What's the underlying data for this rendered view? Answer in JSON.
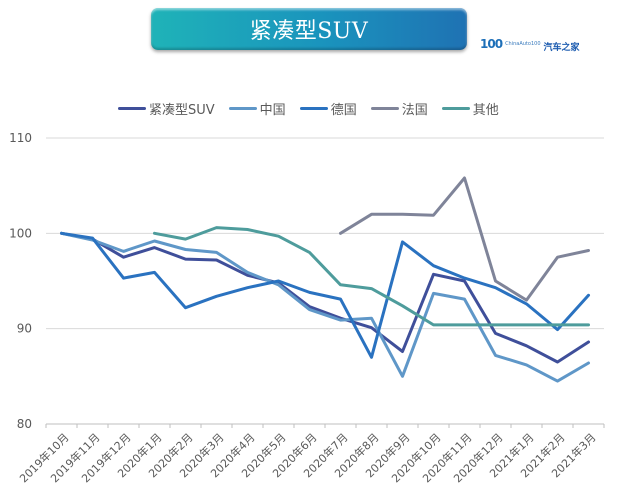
{
  "header": {
    "title": "紧凑型SUV",
    "logo": {
      "mark": "100",
      "small_text": "ChinaAuto100",
      "brand": "汽车之家"
    }
  },
  "chart_data": {
    "type": "line",
    "title": "紧凑型SUV",
    "xlabel": "",
    "ylabel": "",
    "ylim": [
      80,
      110
    ],
    "yticks": [
      80,
      90,
      100,
      110
    ],
    "grid": true,
    "legend_position": "top",
    "categories": [
      "2019年10月",
      "2019年11月",
      "2019年12月",
      "2020年1月",
      "2020年2月",
      "2020年3月",
      "2020年4月",
      "2020年5月",
      "2020年6月",
      "2020年7月",
      "2020年8月",
      "2020年9月",
      "2020年10月",
      "2020年11月",
      "2020年12月",
      "2021年1月",
      "2021年2月",
      "2021年3月"
    ],
    "series": [
      {
        "name": "紧凑型SUV",
        "color": "#3f4f9a",
        "values": [
          100,
          99.4,
          97.5,
          98.5,
          97.3,
          97.2,
          95.6,
          94.8,
          92.3,
          91.1,
          90.1,
          87.6,
          95.7,
          95.0,
          89.5,
          88.2,
          86.5,
          88.6
        ]
      },
      {
        "name": "中国",
        "color": "#5f97c8",
        "values": [
          100,
          99.3,
          98.1,
          99.2,
          98.3,
          98.0,
          95.9,
          94.6,
          92.0,
          90.9,
          91.1,
          85.0,
          93.7,
          93.1,
          87.2,
          86.2,
          84.5,
          86.4
        ]
      },
      {
        "name": "德国",
        "color": "#2a72c0",
        "values": [
          100,
          99.5,
          95.3,
          95.9,
          92.2,
          93.4,
          94.3,
          95.0,
          93.8,
          93.1,
          87.0,
          99.1,
          96.6,
          95.3,
          94.3,
          92.6,
          89.9,
          93.5
        ]
      },
      {
        "name": "法国",
        "color": "#7f8499",
        "values": [
          null,
          null,
          null,
          null,
          null,
          null,
          null,
          null,
          null,
          100.0,
          102.0,
          102.0,
          101.9,
          105.8,
          95.0,
          93.0,
          97.5,
          98.2
        ]
      },
      {
        "name": "其他",
        "color": "#4e9c9c",
        "values": [
          null,
          null,
          null,
          100.0,
          99.4,
          100.6,
          100.4,
          99.7,
          98.0,
          94.6,
          94.2,
          92.4,
          90.4,
          90.4,
          90.4,
          90.4,
          90.4,
          90.4
        ]
      }
    ]
  }
}
